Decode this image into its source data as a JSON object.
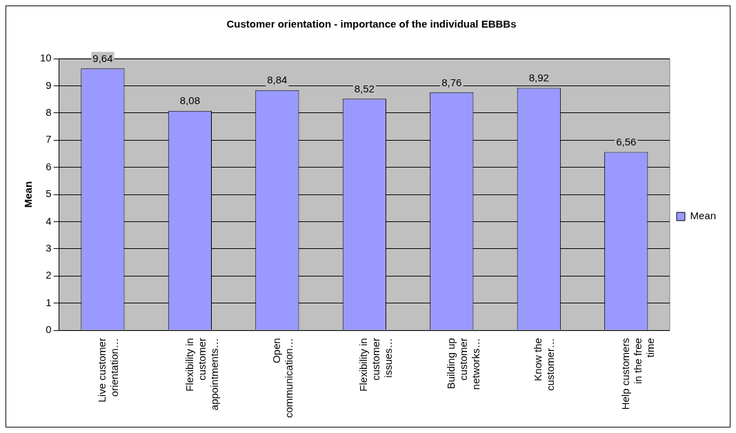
{
  "chart_data": {
    "type": "bar",
    "title": "Customer orientation - importance of the individual EBBBs",
    "ylabel": "Mean",
    "categories": [
      "Live customer orientation…",
      "Flexibility in customer appointments…",
      "Open communication…",
      "Flexibility in customer issues…",
      "Building up customer networks…",
      "Know the customer…",
      "Help customers in the free time"
    ],
    "series": [
      {
        "name": "Mean",
        "color": "#9999ff",
        "values": [
          9.64,
          8.08,
          8.84,
          8.52,
          8.76,
          8.92,
          6.56
        ],
        "value_labels": [
          "9,64",
          "8,08",
          "8,84",
          "8,52",
          "8,76",
          "8,92",
          "6,56"
        ]
      }
    ],
    "ylim": [
      0,
      10
    ],
    "yticks": [
      0,
      1,
      2,
      3,
      4,
      5,
      6,
      7,
      8,
      9,
      10
    ],
    "grid": "y",
    "legend": "right"
  }
}
